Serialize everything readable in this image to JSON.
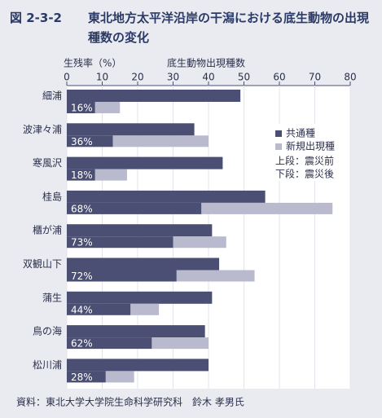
{
  "chart_data": {
    "type": "bar",
    "figure_label": "図 2-3-2",
    "title": "東北地方太平洋沿岸の干潟における底生動物の出現種数の変化",
    "x_label": "底生動物出現種数",
    "rate_label": "生残率（%）",
    "categories": [
      "細浦",
      "波津々浦",
      "寒風沢",
      "桂島",
      "櫃が浦",
      "双観山下",
      "蒲生",
      "鳥の海",
      "松川浦"
    ],
    "xlim": [
      0,
      80
    ],
    "xticks": [
      0,
      10,
      20,
      30,
      40,
      50,
      60,
      70,
      80
    ],
    "grid": true,
    "before": {
      "label": "上段：震災前",
      "values": [
        49,
        36,
        44,
        56,
        41,
        43,
        41,
        39,
        40
      ]
    },
    "after": {
      "label": "下段：震災後",
      "series": [
        {
          "name": "共通種",
          "color": "#4b4f73",
          "values": [
            8,
            13,
            8,
            38,
            30,
            31,
            18,
            24,
            11
          ]
        },
        {
          "name": "新規出現種",
          "color": "#b9bacd",
          "values": [
            7,
            27,
            9,
            37,
            15,
            22,
            8,
            16,
            8
          ]
        }
      ]
    },
    "survival": {
      "values": [
        16,
        36,
        18,
        68,
        73,
        72,
        44,
        62,
        28
      ],
      "value_labels": [
        "16%",
        "36%",
        "18%",
        "68%",
        "73%",
        "72%",
        "44%",
        "62%",
        "28%"
      ]
    },
    "source": "資料：東北大学大学院生命科学研究科　鈴木 孝男氏"
  }
}
